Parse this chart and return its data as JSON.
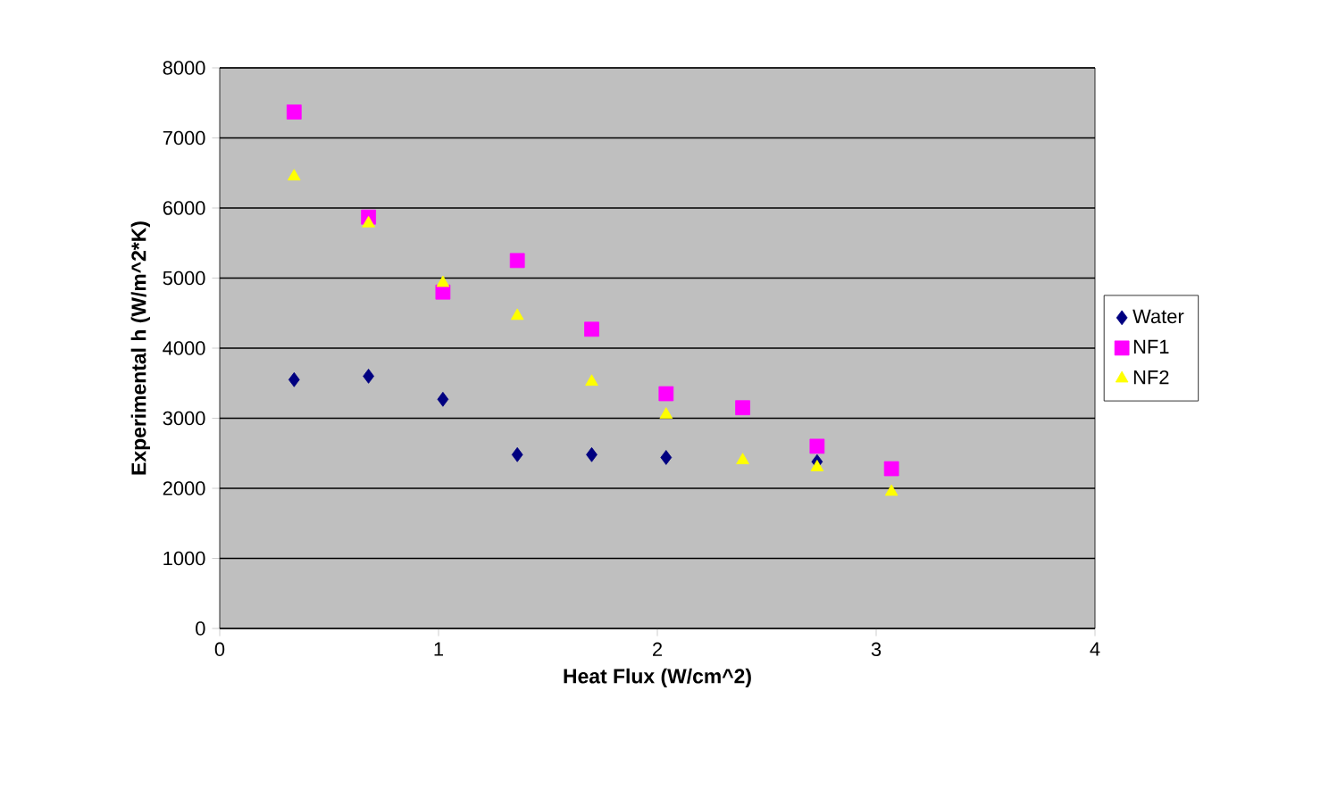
{
  "chart_data": {
    "type": "scatter",
    "xlabel": "Heat Flux (W/cm^2)",
    "ylabel": "Experimental h (W/m^2*K)",
    "xlim": [
      0,
      4
    ],
    "xticks": [
      0,
      1,
      2,
      3,
      4
    ],
    "ylim": [
      0,
      8000
    ],
    "yticks": [
      0,
      1000,
      2000,
      3000,
      4000,
      5000,
      6000,
      7000,
      8000
    ],
    "grid": "y",
    "legend": "right",
    "series": [
      {
        "name": "Water",
        "color": "#000080",
        "marker": "diamond",
        "x": [
          0.34,
          0.68,
          1.02,
          1.36,
          1.7,
          2.04,
          2.39,
          2.73
        ],
        "values": [
          3550,
          3600,
          3270,
          2480,
          2480,
          2440,
          null,
          2380
        ]
      },
      {
        "name": "NF1",
        "color": "#ff00ff",
        "marker": "square",
        "x": [
          0.34,
          0.68,
          1.02,
          1.36,
          1.7,
          2.04,
          2.39,
          2.73,
          3.07
        ],
        "values": [
          7370,
          5870,
          4800,
          5250,
          4270,
          3350,
          3150,
          2600,
          2280
        ]
      },
      {
        "name": "NF2",
        "color": "#ffff00",
        "marker": "triangle",
        "x": [
          0.34,
          0.68,
          1.02,
          1.36,
          1.7,
          2.04,
          2.39,
          2.73,
          3.07
        ],
        "values": [
          6450,
          5780,
          4930,
          4460,
          3520,
          3050,
          2400,
          2300,
          1950
        ]
      }
    ]
  }
}
